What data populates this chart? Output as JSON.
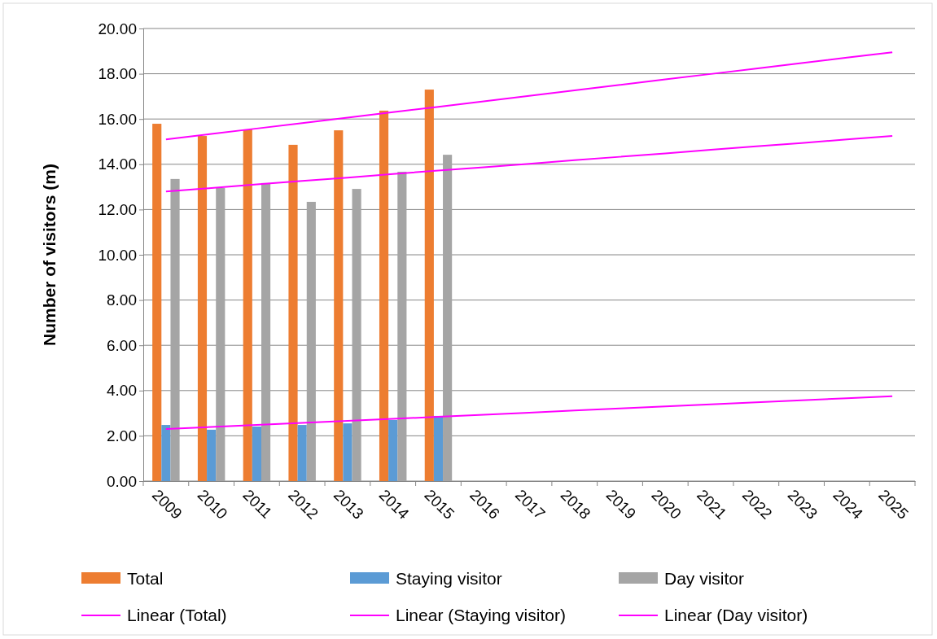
{
  "chart_data": {
    "type": "bar",
    "ylabel": "Number of visitors (m)",
    "categories": [
      "2009",
      "2010",
      "2011",
      "2012",
      "2013",
      "2014",
      "2015",
      "2016",
      "2017",
      "2018",
      "2019",
      "2020",
      "2021",
      "2022",
      "2023",
      "2024",
      "2025"
    ],
    "series": [
      {
        "name": "Total",
        "color": "#ed7d31",
        "values": [
          15.79,
          15.25,
          15.54,
          14.86,
          15.5,
          16.37,
          17.3,
          null,
          null,
          null,
          null,
          null,
          null,
          null,
          null,
          null,
          null
        ]
      },
      {
        "name": "Staying visitor",
        "color": "#5b9bd5",
        "values": [
          2.48,
          2.27,
          2.41,
          2.48,
          2.55,
          2.7,
          2.88,
          null,
          null,
          null,
          null,
          null,
          null,
          null,
          null,
          null,
          null
        ]
      },
      {
        "name": "Day visitor",
        "color": "#a5a5a5",
        "values": [
          13.35,
          12.95,
          13.17,
          12.34,
          12.91,
          13.67,
          14.42,
          null,
          null,
          null,
          null,
          null,
          null,
          null,
          null,
          null,
          null
        ]
      },
      {
        "name": "Linear (Total)",
        "type": "line",
        "color": "#ff00ff",
        "values": [
          15.1,
          15.34,
          15.58,
          15.82,
          16.06,
          16.3,
          16.54,
          16.78,
          17.02,
          17.27,
          17.51,
          17.75,
          17.99,
          18.23,
          18.47,
          18.71,
          18.95
        ]
      },
      {
        "name": "Linear (Staying visitor)",
        "type": "line",
        "color": "#ff00ff",
        "values": [
          2.3,
          2.39,
          2.48,
          2.57,
          2.66,
          2.75,
          2.84,
          2.93,
          3.02,
          3.12,
          3.21,
          3.3,
          3.39,
          3.48,
          3.57,
          3.66,
          3.75
        ]
      },
      {
        "name": "Linear (Day visitor)",
        "type": "line",
        "color": "#ff00ff",
        "values": [
          12.8,
          12.95,
          13.11,
          13.26,
          13.41,
          13.57,
          13.72,
          13.87,
          14.02,
          14.18,
          14.33,
          14.48,
          14.64,
          14.79,
          14.94,
          15.1,
          15.25
        ]
      }
    ],
    "ylim": [
      0,
      20
    ],
    "yticks": [
      {
        "value": 0,
        "label": "0.00"
      },
      {
        "value": 2,
        "label": "2.00"
      },
      {
        "value": 4,
        "label": "4.00"
      },
      {
        "value": 6,
        "label": "6.00"
      },
      {
        "value": 8,
        "label": "8.00"
      },
      {
        "value": 10,
        "label": "10.00"
      },
      {
        "value": 12,
        "label": "12.00"
      },
      {
        "value": 14,
        "label": "14.00"
      },
      {
        "value": 16,
        "label": "16.00"
      },
      {
        "value": 18,
        "label": "18.00"
      },
      {
        "value": 20,
        "label": "20.00"
      }
    ],
    "grid": "y",
    "legend": "bottom",
    "line_style": "solid",
    "marker": "none"
  }
}
